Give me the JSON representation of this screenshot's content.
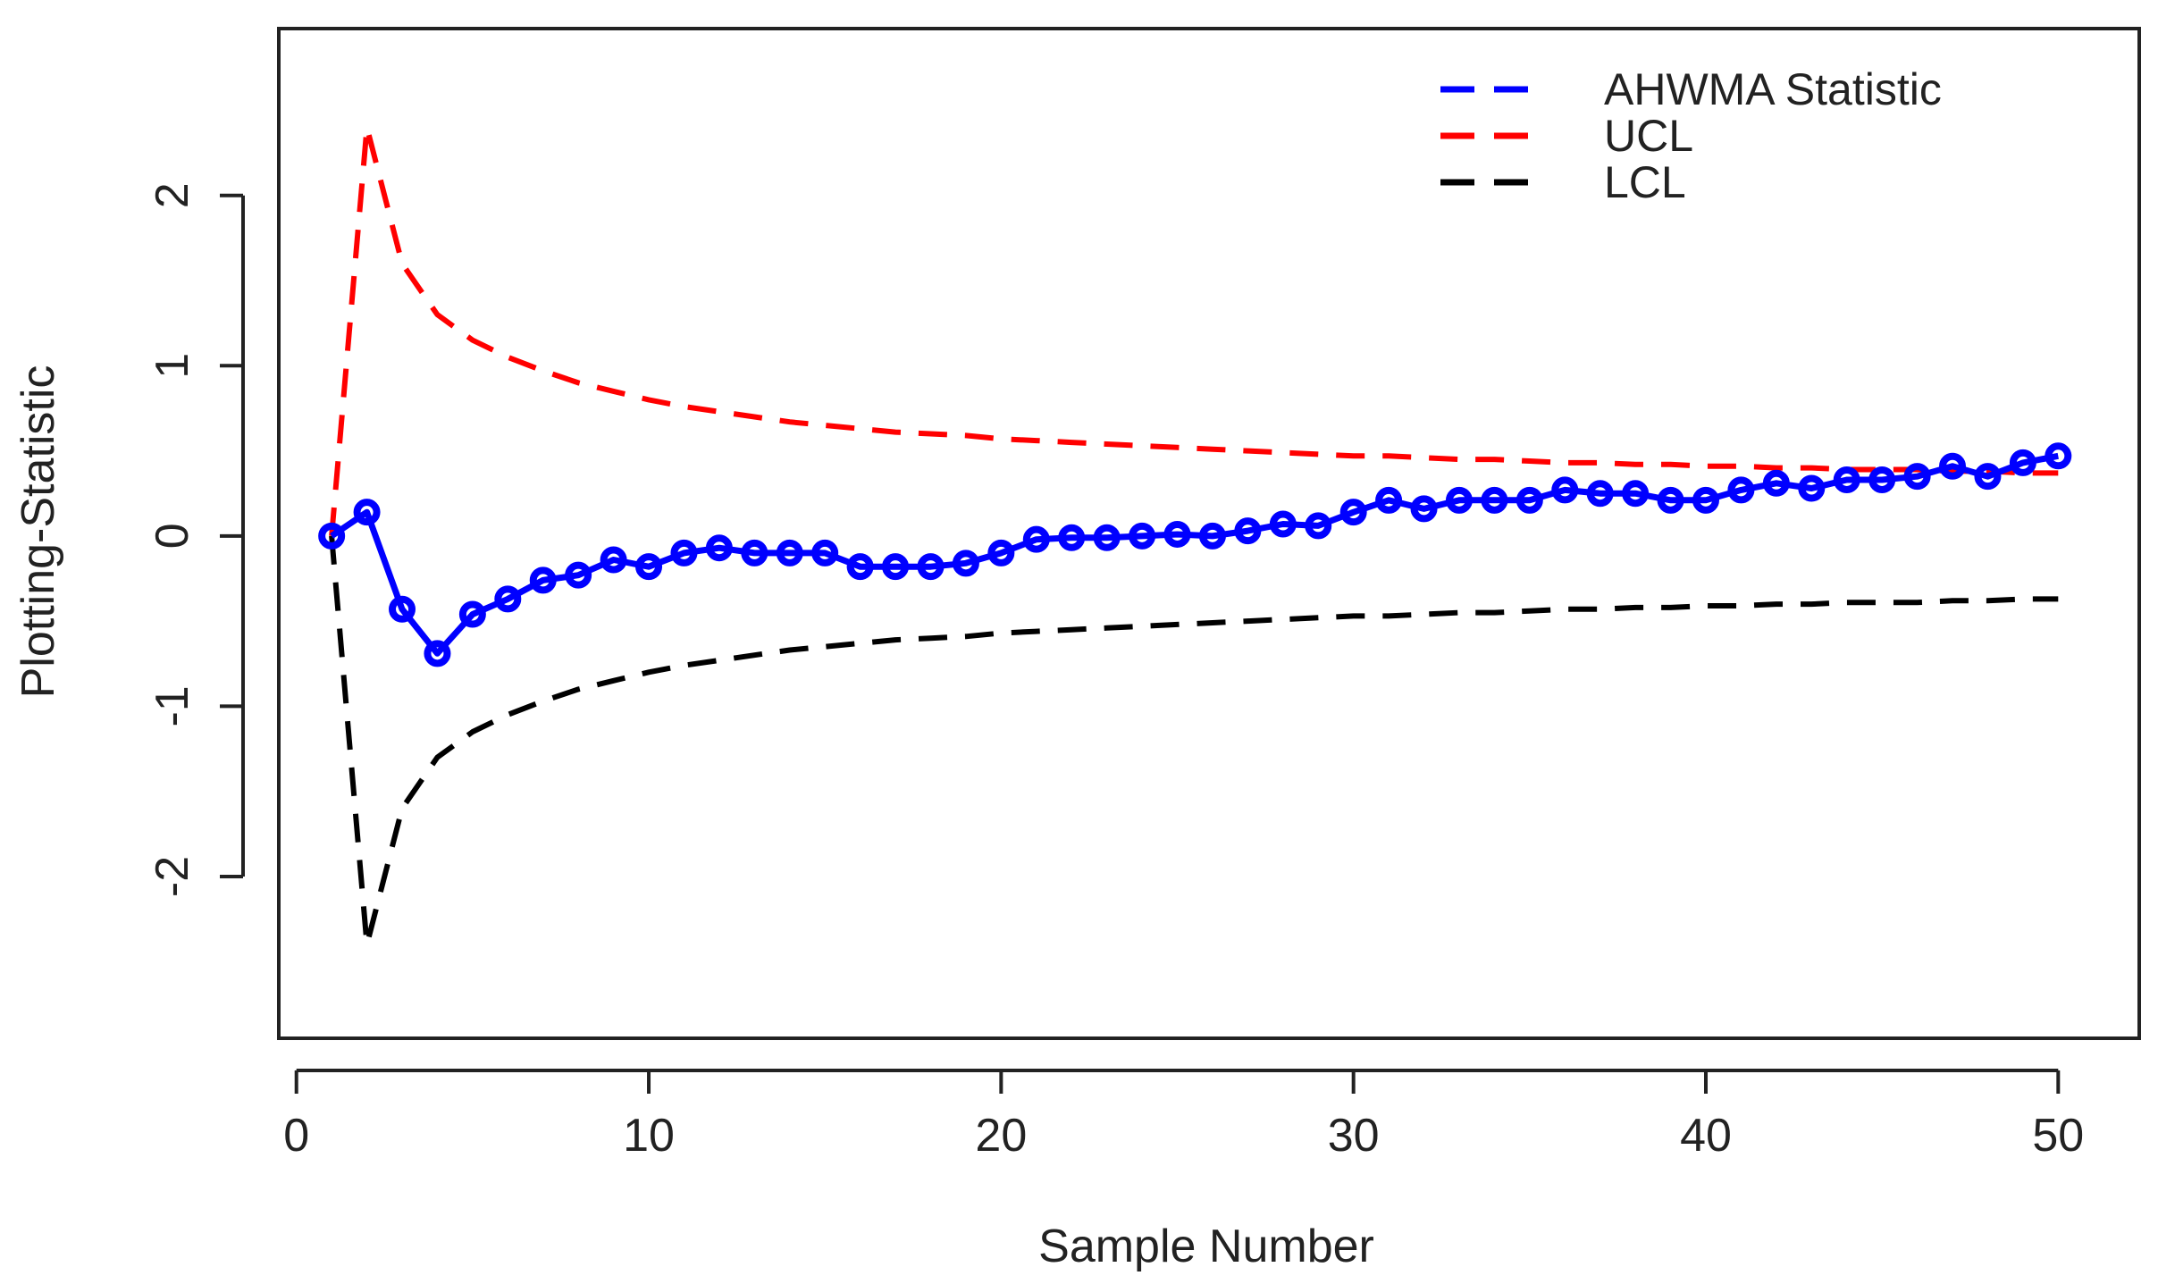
{
  "chart_data": {
    "type": "line",
    "title": "",
    "xlabel": "Sample Number",
    "ylabel": "Plotting-Statistic",
    "xlim": [
      -0.5,
      52.3
    ],
    "ylim": [
      -2.95,
      2.98
    ],
    "xticks": [
      0,
      10,
      20,
      30,
      40,
      50
    ],
    "yticks": [
      -2,
      -1,
      0,
      1,
      2
    ],
    "xtick_labels": [
      "0",
      "10",
      "20",
      "30",
      "40",
      "50"
    ],
    "ytick_labels": [
      "-2",
      "-1",
      "0",
      "1",
      "2"
    ],
    "legend_position": "top-right",
    "x": [
      1,
      2,
      3,
      4,
      5,
      6,
      7,
      8,
      9,
      10,
      11,
      12,
      13,
      14,
      15,
      16,
      17,
      18,
      19,
      20,
      21,
      22,
      23,
      24,
      25,
      26,
      27,
      28,
      29,
      30,
      31,
      32,
      33,
      34,
      35,
      36,
      37,
      38,
      39,
      40,
      41,
      42,
      43,
      44,
      45,
      46,
      47,
      48,
      49,
      50
    ],
    "series": [
      {
        "name": "AHWMA Statistic",
        "color": "#0000ff",
        "dashed_legend": true,
        "markers": true,
        "values": [
          0.0,
          0.14,
          -0.43,
          -0.69,
          -0.46,
          -0.37,
          -0.26,
          -0.23,
          -0.14,
          -0.18,
          -0.1,
          -0.07,
          -0.1,
          -0.1,
          -0.1,
          -0.18,
          -0.18,
          -0.18,
          -0.16,
          -0.1,
          -0.02,
          -0.01,
          -0.01,
          0.0,
          0.01,
          0.0,
          0.03,
          0.07,
          0.06,
          0.14,
          0.21,
          0.16,
          0.21,
          0.21,
          0.21,
          0.27,
          0.25,
          0.25,
          0.21,
          0.21,
          0.27,
          0.31,
          0.28,
          0.33,
          0.33,
          0.35,
          0.41,
          0.35,
          0.43,
          0.47
        ]
      },
      {
        "name": "UCL",
        "color": "#ff0000",
        "dashed_legend": true,
        "markers": false,
        "values": [
          0.0,
          2.4,
          1.6,
          1.3,
          1.15,
          1.05,
          0.97,
          0.9,
          0.85,
          0.8,
          0.76,
          0.73,
          0.7,
          0.67,
          0.65,
          0.63,
          0.61,
          0.6,
          0.59,
          0.57,
          0.56,
          0.55,
          0.54,
          0.53,
          0.52,
          0.51,
          0.5,
          0.49,
          0.48,
          0.47,
          0.47,
          0.46,
          0.45,
          0.45,
          0.44,
          0.43,
          0.43,
          0.42,
          0.42,
          0.41,
          0.41,
          0.4,
          0.4,
          0.39,
          0.39,
          0.39,
          0.38,
          0.38,
          0.37,
          0.37
        ]
      },
      {
        "name": "LCL",
        "color": "#000000",
        "dashed_legend": true,
        "markers": false,
        "values": [
          0.0,
          -2.4,
          -1.6,
          -1.3,
          -1.15,
          -1.05,
          -0.97,
          -0.9,
          -0.85,
          -0.8,
          -0.76,
          -0.73,
          -0.7,
          -0.67,
          -0.65,
          -0.63,
          -0.61,
          -0.6,
          -0.59,
          -0.57,
          -0.56,
          -0.55,
          -0.54,
          -0.53,
          -0.52,
          -0.51,
          -0.5,
          -0.49,
          -0.48,
          -0.47,
          -0.47,
          -0.46,
          -0.45,
          -0.45,
          -0.44,
          -0.43,
          -0.43,
          -0.42,
          -0.42,
          -0.41,
          -0.41,
          -0.4,
          -0.4,
          -0.39,
          -0.39,
          -0.39,
          -0.38,
          -0.38,
          -0.37,
          -0.37
        ]
      }
    ]
  }
}
